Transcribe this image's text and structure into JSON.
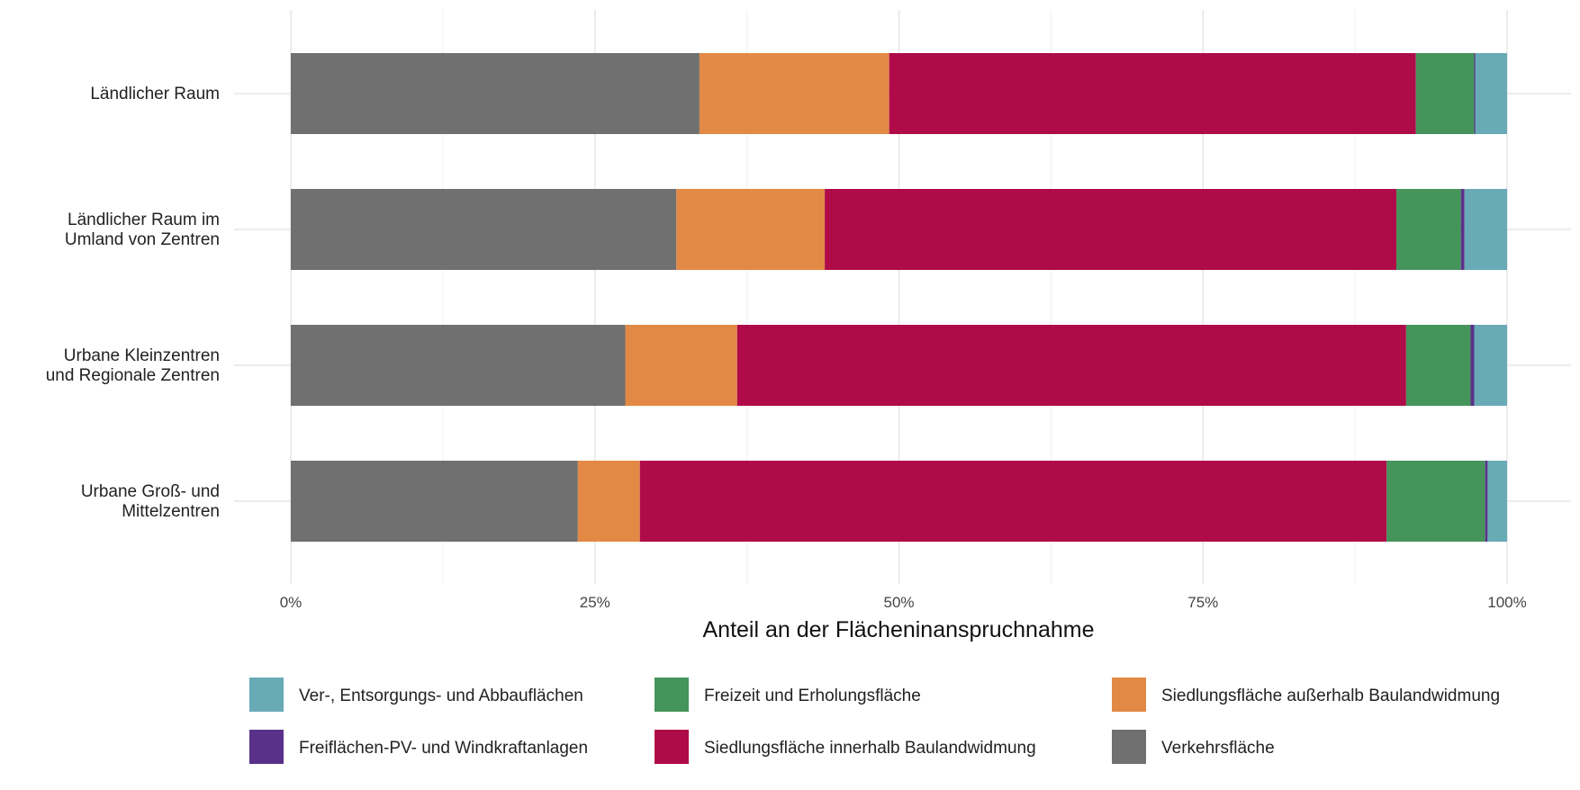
{
  "chart_data": {
    "type": "bar",
    "orientation": "horizontal",
    "stacked": "percent",
    "categories": [
      [
        "Ländlicher Raum"
      ],
      [
        "Ländlicher Raum im",
        "Umland von Zentren"
      ],
      [
        "Urbane Kleinzentren",
        "und Regionale Zentren"
      ],
      [
        "Urbane Groß- und",
        "Mittelzentren"
      ]
    ],
    "series": [
      {
        "name": "Verkehrsfläche",
        "color": "#707070",
        "values": [
          33.6,
          31.7,
          27.5,
          23.6
        ]
      },
      {
        "name": "Siedlungsfläche außerhalb Baulandwidmung",
        "color": "#E38946",
        "values": [
          15.6,
          12.2,
          9.2,
          5.1
        ]
      },
      {
        "name": "Siedlungsfläche innerhalb Baulandwidmung",
        "color": "#AF0B49",
        "values": [
          43.3,
          47.0,
          55.0,
          61.4
        ]
      },
      {
        "name": "Freizeit und Erholungsfläche",
        "color": "#45945B",
        "values": [
          4.8,
          5.3,
          5.3,
          8.1
        ]
      },
      {
        "name": "Freiflächen-PV- und Windkraftanlagen",
        "color": "#5A318A",
        "values": [
          0.1,
          0.3,
          0.3,
          0.2
        ]
      },
      {
        "name": "Ver-, Entsorgungs- und Abbauflächen",
        "color": "#68ABB6",
        "values": [
          2.6,
          3.5,
          2.7,
          1.6
        ]
      }
    ],
    "xlabel": "Anteil an der Flächeninanspruchnahme",
    "ylabel": "",
    "xlim": [
      0,
      100
    ],
    "xticks": [
      "0%",
      "25%",
      "50%",
      "75%",
      "100%"
    ],
    "grid": true,
    "legend_position": "bottom",
    "legend_order": [
      "Ver-, Entsorgungs- und Abbauflächen",
      "Freizeit und Erholungsfläche",
      "Siedlungsfläche außerhalb Baulandwidmung",
      "Freiflächen-PV- und Windkraftanlagen",
      "Siedlungsfläche innerhalb Baulandwidmung",
      "Verkehrsfläche"
    ]
  }
}
